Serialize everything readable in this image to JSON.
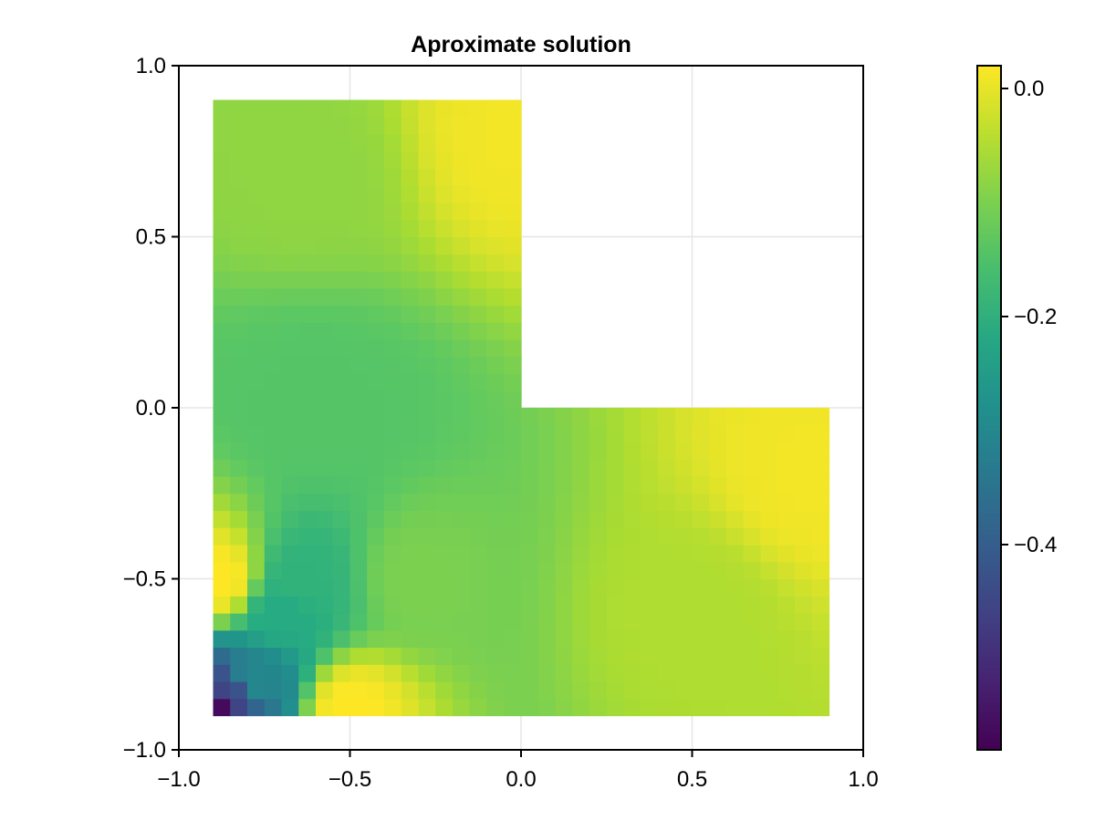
{
  "chart_data": {
    "type": "heatmap",
    "title": "Aproximate solution",
    "xlabel": "",
    "ylabel": "",
    "xlim": [
      -1.0,
      1.0
    ],
    "ylim": [
      -1.0,
      1.0
    ],
    "x_ticks": [
      -1.0,
      -0.5,
      0.0,
      0.5,
      1.0
    ],
    "y_ticks": [
      -1.0,
      -0.5,
      0.0,
      0.5,
      1.0
    ],
    "x_tick_labels": [
      "−1.0",
      "−0.5",
      "0.0",
      "0.5",
      "1.0"
    ],
    "y_tick_labels": [
      "−1.0",
      "−0.5",
      "0.0",
      "0.5",
      "1.0"
    ],
    "grid": true,
    "domain": {
      "shape": "L-shaped region",
      "vertices": [
        [
          -0.9,
          -0.9
        ],
        [
          0.9,
          -0.9
        ],
        [
          0.9,
          0.0
        ],
        [
          0.0,
          0.0
        ],
        [
          0.0,
          0.9
        ],
        [
          -0.9,
          0.9
        ]
      ]
    },
    "colormap": "viridis",
    "colorbar": {
      "min": -0.58,
      "max": 0.02,
      "ticks": [
        0.0,
        -0.2,
        -0.4
      ],
      "tick_labels": [
        "0.0",
        "−0.2",
        "−0.4"
      ]
    },
    "samples": [
      {
        "x": -0.89,
        "y": -0.89,
        "value": -0.58
      },
      {
        "x": -0.85,
        "y": -0.85,
        "value": -0.45
      },
      {
        "x": -0.78,
        "y": -0.8,
        "value": -0.3
      },
      {
        "x": -0.7,
        "y": -0.6,
        "value": -0.21
      },
      {
        "x": -0.65,
        "y": -0.5,
        "value": -0.19
      },
      {
        "x": -0.88,
        "y": -0.5,
        "value": 0.02
      },
      {
        "x": -0.5,
        "y": -0.88,
        "value": 0.02
      },
      {
        "x": -0.6,
        "y": 0.0,
        "value": -0.14
      },
      {
        "x": -0.65,
        "y": 0.7,
        "value": -0.08
      },
      {
        "x": -0.3,
        "y": -0.5,
        "value": -0.1
      },
      {
        "x": 0.5,
        "y": -0.6,
        "value": -0.05
      },
      {
        "x": 0.0,
        "y": 0.8,
        "value": 0.01
      },
      {
        "x": 0.85,
        "y": -0.2,
        "value": 0.01
      }
    ]
  }
}
